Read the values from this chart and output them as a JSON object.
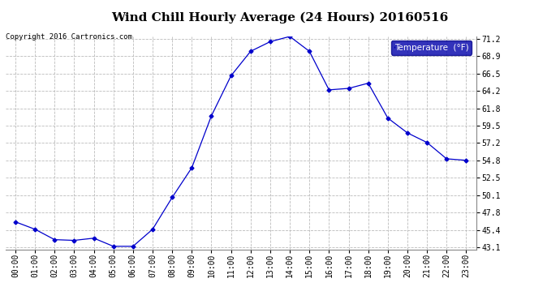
{
  "title": "Wind Chill Hourly Average (24 Hours) 20160516",
  "copyright": "Copyright 2016 Cartronics.com",
  "legend_label": "Temperature  (°F)",
  "hours": [
    "00:00",
    "01:00",
    "02:00",
    "03:00",
    "04:00",
    "05:00",
    "06:00",
    "07:00",
    "08:00",
    "09:00",
    "10:00",
    "11:00",
    "12:00",
    "13:00",
    "14:00",
    "15:00",
    "16:00",
    "17:00",
    "18:00",
    "19:00",
    "20:00",
    "21:00",
    "22:00",
    "23:00"
  ],
  "values": [
    46.5,
    45.5,
    44.1,
    44.0,
    44.3,
    43.2,
    43.2,
    45.5,
    49.8,
    53.8,
    60.8,
    66.2,
    69.5,
    70.8,
    71.5,
    69.5,
    64.3,
    64.5,
    65.2,
    60.5,
    58.5,
    57.2,
    55.0,
    54.8
  ],
  "line_color": "#0000cc",
  "marker": "D",
  "marker_size": 2.5,
  "bg_color": "#ffffff",
  "plot_bg": "#ffffff",
  "grid_color": "#bbbbbb",
  "ylim_min": 43.1,
  "ylim_max": 71.2,
  "yticks": [
    43.1,
    45.4,
    47.8,
    50.1,
    52.5,
    54.8,
    57.2,
    59.5,
    61.8,
    64.2,
    66.5,
    68.9,
    71.2
  ],
  "title_fontsize": 11,
  "tick_fontsize": 7,
  "copyright_fontsize": 6.5,
  "legend_bg": "#0000aa",
  "legend_fg": "#ffffff"
}
